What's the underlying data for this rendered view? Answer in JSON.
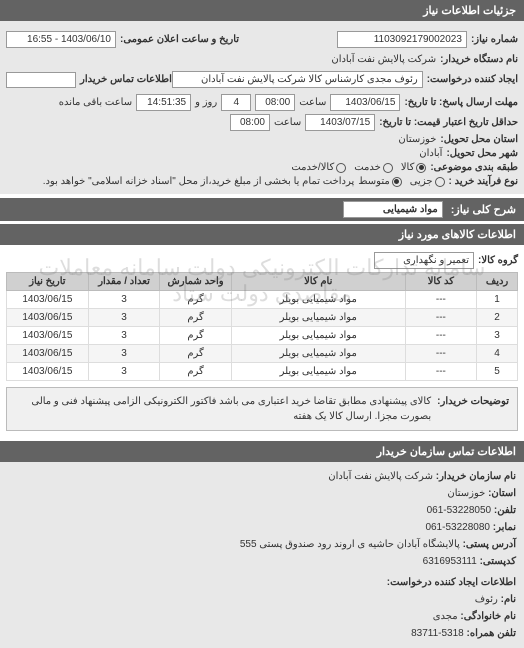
{
  "colors": {
    "header_bg": "#636363",
    "header_text": "#ffffff",
    "panel_bg": "#e8e8e8",
    "border": "#bbbbbb",
    "input_bg": "#ffffff",
    "table_header_bg": "#d0d0d0",
    "table_alt_bg": "#f5f5f5",
    "watermark": "rgba(120,120,120,0.25)"
  },
  "header": {
    "title": "جزئیات اطلاعات نیاز"
  },
  "form": {
    "request_no_label": "شماره نیاز:",
    "request_no": "1103092179002023",
    "announce_label": "تاریخ و ساعت اعلان عمومی:",
    "announce_value": "1403/06/10 - 16:55",
    "buyer_org_label": "نام دستگاه خریدار:",
    "buyer_org": "شرکت پالایش نفت آبادان",
    "requester_label": "ایجاد کننده درخواست:",
    "requester": "رئوف مجدی کارشناس کالا شرکت پالایش نفت آبادان",
    "buyer_contact_label": "اطلاعات تماس خریدار",
    "buyer_contact": "",
    "reply_deadline_label": "مهلت ارسال پاسخ: تا تاریخ:",
    "reply_date": "1403/06/15",
    "time_label": "ساعت",
    "reply_time": "08:00",
    "remain_days": "4",
    "remain_and": "روز و",
    "remain_time": "14:51:35",
    "remain_suffix": "ساعت باقی مانده",
    "credit_label": "حداقل تاریخ اعتبار قیمت: تا تاریخ:",
    "credit_date": "1403/07/15",
    "credit_time": "08:00",
    "province_label": "استان محل تحویل:",
    "province": "خوزستان",
    "city_label": "شهر محل تحویل:",
    "city": "آبادان",
    "subject_class_label": "طبقه بندی موضوعی:",
    "subject_options": {
      "goods": "کالا",
      "service": "خدمت",
      "mixed": "کالا/خدمت"
    },
    "subject_selected": "goods",
    "process_type_label": "نوع فرآیند خرید :",
    "process_options": {
      "minor": "جزیی",
      "medium": "متوسط"
    },
    "process_selected": "medium",
    "process_note": "پرداخت تمام یا بخشی از مبلغ خرید،از محل \"اسناد خزانه اسلامی\" خواهد بود."
  },
  "need_title_bar": "شرح کلی نیاز:",
  "need_title_value": "مواد شیمیایی",
  "items_bar": "اطلاعات کالاهای مورد نیاز",
  "group_label": "گروه کالا:",
  "group_value": "تعمیر و نگهداری",
  "watermark": "سامانه تدارکات الکترونیکی دولت\nسامانه معاملات مقاصدی دولت\nستاد",
  "table": {
    "columns": [
      "ردیف",
      "کد کالا",
      "نام کالا",
      "واحد شمارش",
      "تعداد / مقدار",
      "تاریخ نیاز"
    ],
    "rows": [
      [
        "1",
        "---",
        "مواد شیمیایی بویلر",
        "گرم",
        "3",
        "1403/06/15"
      ],
      [
        "2",
        "---",
        "مواد شیمیایی بویلر",
        "گرم",
        "3",
        "1403/06/15"
      ],
      [
        "3",
        "---",
        "مواد شیمیایی بویلر",
        "گرم",
        "3",
        "1403/06/15"
      ],
      [
        "4",
        "---",
        "مواد شیمیایی بویلر",
        "گرم",
        "3",
        "1403/06/15"
      ],
      [
        "5",
        "---",
        "مواد شیمیایی بویلر",
        "گرم",
        "3",
        "1403/06/15"
      ]
    ],
    "col_widths": [
      "8%",
      "14%",
      "34%",
      "14%",
      "14%",
      "16%"
    ]
  },
  "desc": {
    "label": "توضیحات خریدار:",
    "text": "کالای پیشنهادی مطابق تقاضا خرید اعتباری می باشد فاکتور الکترونیکی الزامی پیشنهاد فنی و مالی بصورت مجزا. ارسال کالا یک هفته"
  },
  "contact_bar": "اطلاعات تماس سازمان خریدار",
  "contact": {
    "org_label": "نام سازمان خریدار:",
    "org": "شرکت پالایش نفت آبادان",
    "province_label": "استان:",
    "province": "خوزستان",
    "tel_label": "تلفن:",
    "tel": "53228050-061",
    "fax_label": "نمابر:",
    "fax": "53228080-061",
    "addr_label": "آدرس پستی:",
    "addr": "پالایشگاه آبادان حاشیه ی اروند رود صندوق پستی 555",
    "post_label": "کدپستی:",
    "post": "6316953111",
    "creator_bar": "اطلاعات ایجاد کننده درخواست:",
    "name_label": "نام:",
    "name": "رئوف",
    "lastname_label": "نام خانوادگی:",
    "lastname": "مجدی",
    "mobile_label": "تلفن همراه:",
    "mobile": "5318-83711"
  }
}
